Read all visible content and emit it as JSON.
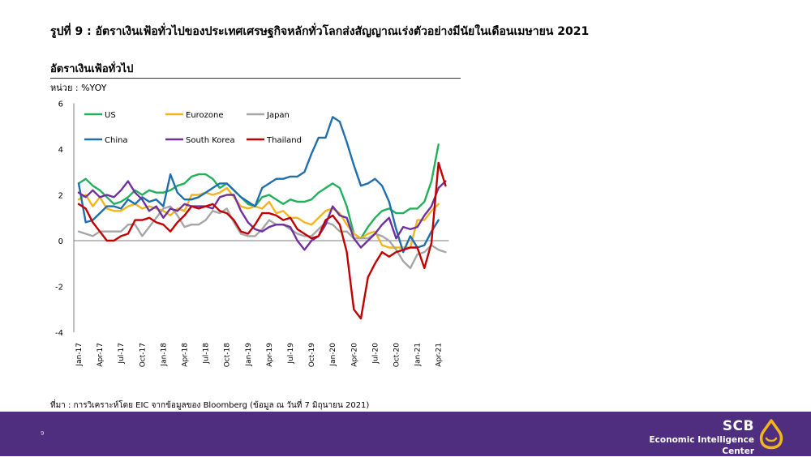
{
  "slide_title": "รูปที่ 9 : อัตราเงินเฟ้อทั่วไปของประเทศเศรษฐกิจหลักทั่วโลกส่งสัญญาณเร่งตัวอย่างมีนัยในเดือนเมษายน 2021",
  "source_note": "ที่มา : การวิเคราะห์โดย EIC จากข้อมูลของ Bloomberg (ข้อมูล ณ วันที่ 7 มิถุนายน 2021)",
  "footer": {
    "page_number": "9",
    "brand_name": "SCB",
    "brand_subtitle": "Economic Intelligence Center",
    "brand_color": "#4f2d7f",
    "logo_color": "#f2b51c"
  },
  "chart_data": {
    "type": "line",
    "title": "อัตราเงินเฟ้อทั่วไป",
    "ylabel": "หน่วย : %YOY",
    "xlabel": "",
    "ylim": [
      -4,
      6
    ],
    "yticks": [
      "6",
      "4",
      "2",
      "0",
      "-2",
      "-4"
    ],
    "x": [
      "Jan-17",
      "Feb-17",
      "Mar-17",
      "Apr-17",
      "May-17",
      "Jun-17",
      "Jul-17",
      "Aug-17",
      "Sep-17",
      "Oct-17",
      "Nov-17",
      "Dec-17",
      "Jan-18",
      "Feb-18",
      "Mar-18",
      "Apr-18",
      "May-18",
      "Jun-18",
      "Jul-18",
      "Aug-18",
      "Sep-18",
      "Oct-18",
      "Nov-18",
      "Dec-18",
      "Jan-19",
      "Feb-19",
      "Mar-19",
      "Apr-19",
      "May-19",
      "Jun-19",
      "Jul-19",
      "Aug-19",
      "Sep-19",
      "Oct-19",
      "Nov-19",
      "Dec-19",
      "Jan-20",
      "Feb-20",
      "Mar-20",
      "Apr-20",
      "May-20",
      "Jun-20",
      "Jul-20",
      "Aug-20",
      "Sep-20",
      "Oct-20",
      "Nov-20",
      "Dec-20",
      "Jan-21",
      "Feb-21",
      "Mar-21",
      "Apr-21",
      "May-21"
    ],
    "xticks": [
      "Jan-17",
      "Apr-17",
      "Jul-17",
      "Oct-17",
      "Jan-18",
      "Apr-18",
      "Jul-18",
      "Oct-18",
      "Jan-19",
      "Apr-19",
      "Jul-19",
      "Oct-19",
      "Jan-20",
      "Apr-20",
      "Jul-20",
      "Oct-20",
      "Jan-21",
      "Apr-21"
    ],
    "legend_position": "top-left inside",
    "grid": false,
    "series": [
      {
        "name": "US",
        "color": "#22b05a",
        "values": [
          2.5,
          2.7,
          2.4,
          2.2,
          1.9,
          1.6,
          1.7,
          1.9,
          2.2,
          2.0,
          2.2,
          2.1,
          2.1,
          2.2,
          2.4,
          2.5,
          2.8,
          2.9,
          2.9,
          2.7,
          2.3,
          2.5,
          2.2,
          1.9,
          1.6,
          1.5,
          1.9,
          2.0,
          1.8,
          1.6,
          1.8,
          1.7,
          1.7,
          1.8,
          2.1,
          2.3,
          2.5,
          2.3,
          1.5,
          0.3,
          0.1,
          0.6,
          1.0,
          1.3,
          1.4,
          1.2,
          1.2,
          1.4,
          1.4,
          1.7,
          2.6,
          4.2,
          null
        ]
      },
      {
        "name": "Eurozone",
        "color": "#f2b51c",
        "values": [
          1.8,
          2.0,
          1.5,
          1.9,
          1.4,
          1.3,
          1.3,
          1.5,
          1.6,
          1.4,
          1.5,
          1.4,
          1.3,
          1.1,
          1.4,
          1.3,
          2.0,
          2.0,
          2.1,
          2.0,
          2.1,
          2.3,
          1.9,
          1.5,
          1.4,
          1.5,
          1.4,
          1.7,
          1.2,
          1.3,
          1.0,
          1.0,
          0.8,
          0.7,
          1.0,
          1.3,
          1.4,
          1.2,
          0.7,
          0.3,
          0.1,
          0.3,
          0.4,
          -0.2,
          -0.3,
          -0.3,
          -0.3,
          -0.3,
          0.9,
          0.9,
          1.3,
          1.6,
          null
        ]
      },
      {
        "name": "Japan",
        "color": "#a6a6a6",
        "values": [
          0.4,
          0.3,
          0.2,
          0.4,
          0.4,
          0.4,
          0.4,
          0.7,
          0.7,
          0.2,
          0.6,
          1.0,
          1.4,
          1.5,
          1.1,
          0.6,
          0.7,
          0.7,
          0.9,
          1.3,
          1.2,
          1.4,
          0.8,
          0.3,
          0.2,
          0.2,
          0.5,
          0.9,
          0.7,
          0.7,
          0.5,
          0.3,
          0.2,
          0.2,
          0.5,
          0.8,
          0.7,
          0.4,
          0.4,
          0.1,
          0.1,
          0.1,
          0.3,
          0.2,
          0.0,
          -0.4,
          -0.9,
          -1.2,
          -0.6,
          -0.5,
          -0.2,
          -0.4,
          -0.5
        ]
      },
      {
        "name": "China",
        "color": "#1f6fae",
        "values": [
          2.5,
          0.8,
          0.9,
          1.2,
          1.5,
          1.5,
          1.4,
          1.8,
          1.6,
          1.9,
          1.7,
          1.8,
          1.5,
          2.9,
          2.1,
          1.8,
          1.8,
          1.9,
          2.1,
          2.3,
          2.5,
          2.5,
          2.2,
          1.9,
          1.7,
          1.5,
          2.3,
          2.5,
          2.7,
          2.7,
          2.8,
          2.8,
          3.0,
          3.8,
          4.5,
          4.5,
          5.4,
          5.2,
          4.3,
          3.3,
          2.4,
          2.5,
          2.7,
          2.4,
          1.7,
          0.5,
          -0.5,
          0.2,
          -0.3,
          -0.2,
          0.4,
          0.9,
          null
        ]
      },
      {
        "name": "South Korea",
        "color": "#7030a0",
        "values": [
          2.1,
          1.9,
          2.2,
          1.9,
          2.0,
          1.9,
          2.2,
          2.6,
          2.1,
          1.8,
          1.3,
          1.5,
          1.0,
          1.4,
          1.3,
          1.6,
          1.5,
          1.5,
          1.5,
          1.4,
          1.9,
          2.0,
          2.0,
          1.3,
          0.8,
          0.5,
          0.4,
          0.6,
          0.7,
          0.7,
          0.6,
          0.0,
          -0.4,
          0.0,
          0.2,
          0.7,
          1.5,
          1.1,
          1.0,
          0.1,
          -0.3,
          0.0,
          0.3,
          0.7,
          1.0,
          0.1,
          0.6,
          0.5,
          0.6,
          1.1,
          1.5,
          2.3,
          2.6
        ]
      },
      {
        "name": "Thailand",
        "color": "#c00000",
        "values": [
          1.6,
          1.4,
          0.8,
          0.4,
          0.0,
          0.0,
          0.2,
          0.3,
          0.9,
          0.9,
          1.0,
          0.8,
          0.7,
          0.4,
          0.8,
          1.1,
          1.5,
          1.4,
          1.5,
          1.6,
          1.3,
          1.2,
          0.9,
          0.4,
          0.3,
          0.7,
          1.2,
          1.2,
          1.1,
          0.9,
          1.0,
          0.5,
          0.3,
          0.1,
          0.2,
          0.9,
          1.1,
          0.7,
          -0.5,
          -3.0,
          -3.4,
          -1.6,
          -1.0,
          -0.5,
          -0.7,
          -0.5,
          -0.4,
          -0.3,
          -0.3,
          -1.2,
          -0.1,
          3.4,
          2.4
        ]
      }
    ]
  }
}
